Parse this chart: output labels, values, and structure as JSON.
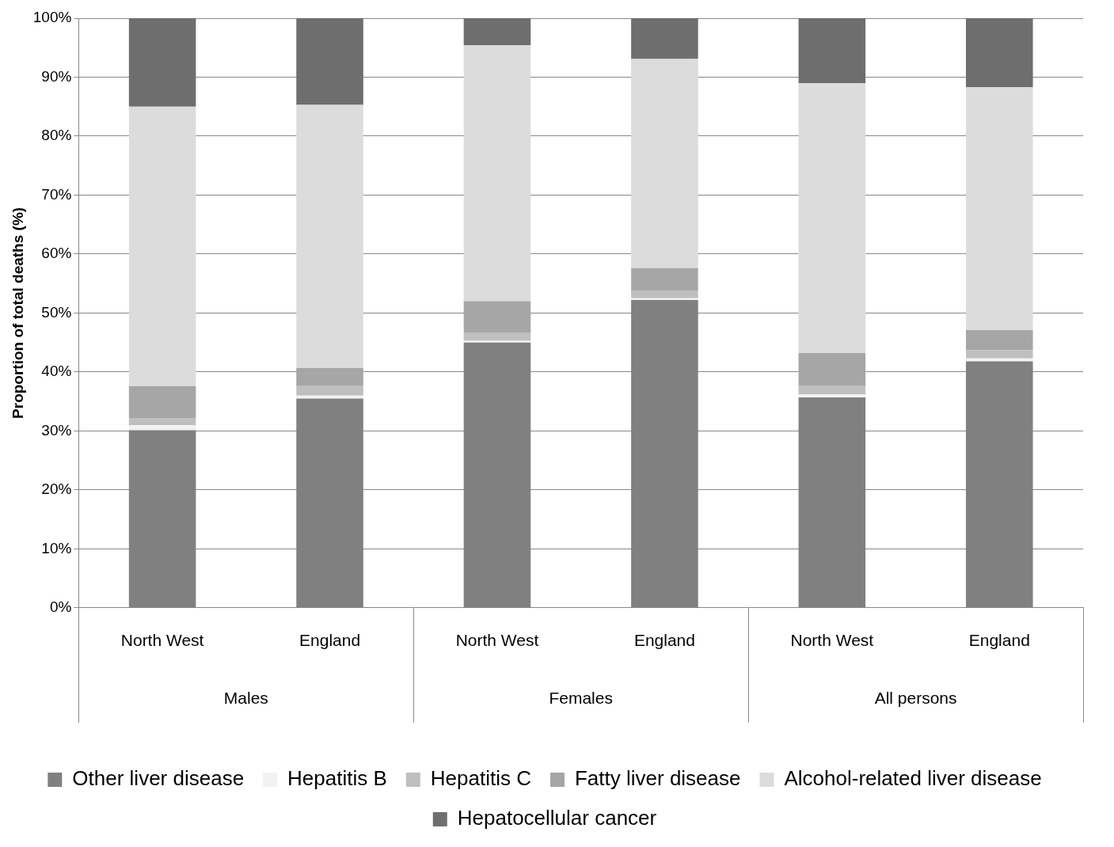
{
  "chart_data": {
    "type": "bar",
    "stacked": true,
    "ylabel": "Proportion of total deaths (%)",
    "categories": [
      "North West",
      "England",
      "North West",
      "England",
      "North West",
      "England"
    ],
    "annotations": [
      "Males",
      "Females",
      "All persons"
    ],
    "ylim": [
      0,
      100
    ],
    "yticks": [
      {
        "value": 0,
        "label": "0%"
      },
      {
        "value": 10,
        "label": "10%"
      },
      {
        "value": 20,
        "label": "20%"
      },
      {
        "value": 30,
        "label": "30%"
      },
      {
        "value": 40,
        "label": "40%"
      },
      {
        "value": 50,
        "label": "50%"
      },
      {
        "value": 60,
        "label": "60%"
      },
      {
        "value": 70,
        "label": "70%"
      },
      {
        "value": 80,
        "label": "80%"
      },
      {
        "value": 90,
        "label": "90%"
      },
      {
        "value": 100,
        "label": "100%"
      }
    ],
    "grid": "y",
    "legend": "bottom",
    "series": [
      {
        "name": "Other liver disease",
        "color": "#808080",
        "values": [
          30.1,
          35.5,
          45.0,
          52.2,
          35.7,
          41.8
        ]
      },
      {
        "name": "Hepatitis B",
        "color": "#f2f2f2",
        "values": [
          0.9,
          0.5,
          0.3,
          0.3,
          0.5,
          0.5
        ]
      },
      {
        "name": "Hepatitis C",
        "color": "#bfbfbf",
        "values": [
          1.2,
          1.6,
          1.3,
          1.3,
          1.4,
          1.4
        ]
      },
      {
        "name": "Fatty liver disease",
        "color": "#a6a6a6",
        "values": [
          5.4,
          3.1,
          5.4,
          3.8,
          5.6,
          3.4
        ]
      },
      {
        "name": "Alcohol-related liver disease",
        "color": "#dcdcdc",
        "values": [
          47.4,
          44.6,
          43.4,
          35.5,
          45.8,
          41.2
        ]
      },
      {
        "name": "Hepatocellular cancer",
        "color": "#6e6e6e",
        "values": [
          15.0,
          14.7,
          4.6,
          6.9,
          11.0,
          11.7
        ]
      }
    ]
  }
}
